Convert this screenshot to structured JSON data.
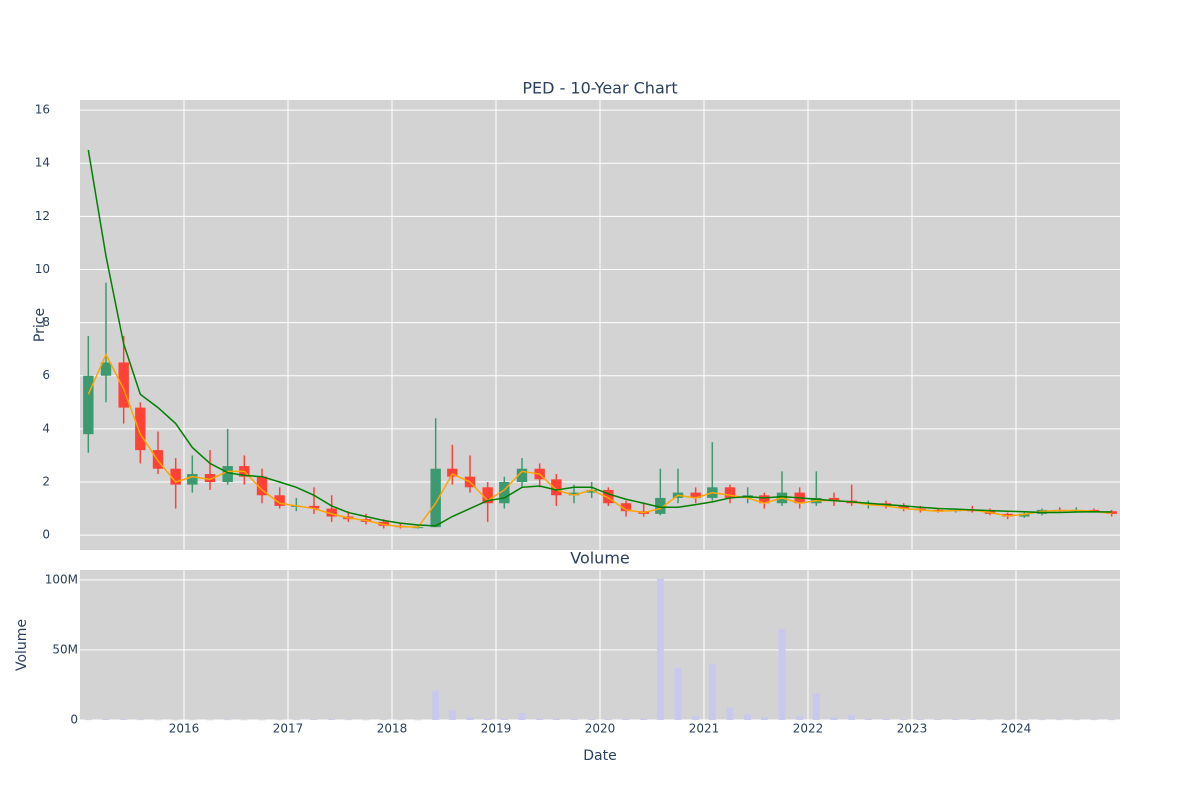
{
  "chart_data": [
    {
      "type": "candlestick",
      "title": "PED - 10-Year Chart",
      "y_label": "Price",
      "x": [
        2015.08,
        2015.25,
        2015.42,
        2015.58,
        2015.75,
        2015.92,
        2016.08,
        2016.25,
        2016.42,
        2016.58,
        2016.75,
        2016.92,
        2017.08,
        2017.25,
        2017.42,
        2017.58,
        2017.75,
        2017.92,
        2018.08,
        2018.25,
        2018.42,
        2018.58,
        2018.75,
        2018.92,
        2019.08,
        2019.25,
        2019.42,
        2019.58,
        2019.75,
        2019.92,
        2020.08,
        2020.25,
        2020.42,
        2020.58,
        2020.75,
        2020.92,
        2021.08,
        2021.25,
        2021.42,
        2021.58,
        2021.75,
        2021.92,
        2022.08,
        2022.25,
        2022.42,
        2022.58,
        2022.75,
        2022.92,
        2023.08,
        2023.25,
        2023.42,
        2023.58,
        2023.75,
        2023.92,
        2024.08,
        2024.25,
        2024.42,
        2024.58,
        2024.75,
        2024.92
      ],
      "open": [
        3.8,
        6.0,
        6.5,
        4.8,
        3.2,
        2.5,
        1.9,
        2.3,
        2.0,
        2.6,
        2.2,
        1.5,
        1.1,
        1.1,
        1.0,
        0.7,
        0.6,
        0.5,
        0.35,
        0.3,
        0.3,
        2.5,
        2.2,
        1.8,
        1.2,
        2.0,
        2.5,
        2.1,
        1.5,
        1.6,
        1.7,
        1.2,
        0.9,
        0.8,
        1.4,
        1.6,
        1.4,
        1.8,
        1.4,
        1.5,
        1.2,
        1.6,
        1.2,
        1.4,
        1.3,
        1.2,
        1.2,
        1.1,
        1.0,
        0.95,
        0.9,
        0.95,
        0.9,
        0.8,
        0.7,
        0.8,
        0.95,
        0.9,
        0.95,
        0.9
      ],
      "high": [
        7.5,
        9.5,
        7.5,
        5.0,
        3.9,
        2.9,
        3.0,
        3.2,
        4.0,
        3.0,
        2.5,
        1.8,
        1.4,
        1.8,
        1.5,
        0.9,
        0.8,
        0.6,
        0.45,
        0.4,
        4.4,
        3.4,
        3.0,
        2.0,
        2.2,
        2.9,
        2.7,
        2.3,
        1.9,
        2.0,
        1.8,
        1.3,
        1.2,
        2.5,
        2.5,
        1.8,
        3.5,
        1.9,
        1.8,
        1.6,
        2.4,
        1.8,
        2.4,
        1.6,
        1.9,
        1.3,
        1.3,
        1.2,
        1.1,
        1.0,
        1.0,
        1.1,
        1.0,
        0.85,
        0.85,
        1.0,
        1.05,
        1.05,
        1.0,
        0.95
      ],
      "low": [
        3.1,
        5.0,
        4.2,
        2.7,
        2.3,
        1.0,
        1.6,
        1.7,
        1.9,
        1.9,
        1.2,
        1.0,
        0.9,
        0.8,
        0.5,
        0.5,
        0.4,
        0.25,
        0.25,
        0.25,
        0.3,
        1.9,
        1.6,
        0.5,
        1.0,
        1.8,
        1.8,
        1.1,
        1.2,
        1.4,
        1.1,
        0.7,
        0.7,
        0.75,
        1.2,
        1.2,
        1.3,
        1.2,
        1.2,
        1.0,
        1.1,
        1.0,
        1.1,
        1.1,
        1.1,
        1.0,
        1.0,
        0.9,
        0.85,
        0.85,
        0.85,
        0.85,
        0.75,
        0.6,
        0.65,
        0.75,
        0.85,
        0.85,
        0.85,
        0.7
      ],
      "close": [
        6.0,
        6.5,
        4.8,
        3.2,
        2.5,
        1.9,
        2.3,
        2.0,
        2.6,
        2.2,
        1.5,
        1.1,
        1.1,
        1.0,
        0.7,
        0.6,
        0.5,
        0.35,
        0.3,
        0.3,
        2.5,
        2.2,
        1.8,
        1.2,
        2.0,
        2.5,
        2.1,
        1.5,
        1.6,
        1.7,
        1.2,
        0.9,
        0.8,
        1.4,
        1.6,
        1.4,
        1.8,
        1.4,
        1.5,
        1.2,
        1.6,
        1.2,
        1.4,
        1.3,
        1.2,
        1.2,
        1.1,
        1.0,
        0.95,
        0.9,
        0.95,
        0.9,
        0.8,
        0.7,
        0.8,
        0.95,
        0.9,
        0.95,
        0.9,
        0.8
      ],
      "increasing_color": "#3d9970",
      "decreasing_color": "#ff4136",
      "ma_lines": [
        {
          "color": "#ffa500",
          "values": [
            5.3,
            6.8,
            5.5,
            3.8,
            2.8,
            2.0,
            2.2,
            2.1,
            2.4,
            2.4,
            1.7,
            1.2,
            1.1,
            1.0,
            0.8,
            0.65,
            0.55,
            0.4,
            0.32,
            0.3,
            1.2,
            2.3,
            2.0,
            1.3,
            1.7,
            2.4,
            2.3,
            1.7,
            1.5,
            1.7,
            1.4,
            0.95,
            0.85,
            1.0,
            1.5,
            1.4,
            1.6,
            1.5,
            1.4,
            1.2,
            1.4,
            1.2,
            1.3,
            1.3,
            1.25,
            1.15,
            1.1,
            1.0,
            0.95,
            0.9,
            0.92,
            0.95,
            0.85,
            0.72,
            0.78,
            0.9,
            0.92,
            0.93,
            0.9,
            0.82
          ]
        },
        {
          "color": "#008000",
          "values": [
            14.5,
            10.5,
            7.2,
            5.3,
            4.8,
            4.2,
            3.3,
            2.7,
            2.35,
            2.25,
            2.2,
            2.0,
            1.8,
            1.5,
            1.1,
            0.85,
            0.7,
            0.55,
            0.45,
            0.38,
            0.35,
            0.7,
            1.0,
            1.3,
            1.4,
            1.8,
            1.85,
            1.7,
            1.8,
            1.8,
            1.55,
            1.35,
            1.2,
            1.05,
            1.05,
            1.15,
            1.25,
            1.4,
            1.45,
            1.4,
            1.45,
            1.4,
            1.35,
            1.3,
            1.25,
            1.2,
            1.15,
            1.1,
            1.05,
            1.0,
            0.98,
            0.95,
            0.92,
            0.9,
            0.88,
            0.85,
            0.85,
            0.87,
            0.88,
            0.87
          ]
        }
      ],
      "xlim": [
        2015.0,
        2025.0
      ],
      "ylim": [
        -0.56,
        16.38
      ],
      "yticks": [
        0,
        2,
        4,
        6,
        8,
        10,
        12,
        14,
        16
      ],
      "grid": true
    },
    {
      "type": "bar",
      "title": "Volume",
      "y_label": "Volume",
      "x_label": "Date",
      "x": [
        2015.08,
        2015.25,
        2015.42,
        2015.58,
        2015.75,
        2015.92,
        2016.08,
        2016.25,
        2016.42,
        2016.58,
        2016.75,
        2016.92,
        2017.08,
        2017.25,
        2017.42,
        2017.58,
        2017.75,
        2017.92,
        2018.08,
        2018.25,
        2018.42,
        2018.58,
        2018.75,
        2018.92,
        2019.08,
        2019.25,
        2019.42,
        2019.58,
        2019.75,
        2019.92,
        2020.08,
        2020.25,
        2020.42,
        2020.58,
        2020.75,
        2020.92,
        2021.08,
        2021.25,
        2021.42,
        2021.58,
        2021.75,
        2021.92,
        2022.08,
        2022.25,
        2022.42,
        2022.58,
        2022.75,
        2022.92,
        2023.08,
        2023.25,
        2023.42,
        2023.58,
        2023.75,
        2023.92,
        2024.08,
        2024.25,
        2024.42,
        2024.58,
        2024.75,
        2024.92
      ],
      "values": [
        300000,
        500000,
        400000,
        300000,
        200000,
        200000,
        200000,
        200000,
        300000,
        200000,
        200000,
        200000,
        300000,
        400000,
        600000,
        300000,
        200000,
        300000,
        200000,
        200000,
        21000000,
        7000000,
        2000000,
        1000000,
        1000000,
        5000000,
        1000000,
        800000,
        600000,
        500000,
        500000,
        600000,
        1000000,
        101000000,
        37000000,
        3000000,
        40000000,
        9000000,
        4000000,
        2000000,
        65000000,
        3000000,
        19000000,
        2000000,
        3500000,
        1000000,
        800000,
        600000,
        500000,
        400000,
        500000,
        400000,
        300000,
        300000,
        400000,
        300000,
        300000,
        300000,
        300000,
        300000
      ],
      "color": "#c9c9ef",
      "xlim": [
        2015.0,
        2025.0
      ],
      "xticks": [
        2016,
        2017,
        2018,
        2019,
        2020,
        2021,
        2022,
        2023,
        2024
      ],
      "ylim": [
        0,
        107000000
      ],
      "yticks": [
        0,
        {
          "value": 50000000,
          "label": "50M"
        },
        {
          "value": 100000000,
          "label": "100M"
        }
      ],
      "grid": true
    }
  ]
}
